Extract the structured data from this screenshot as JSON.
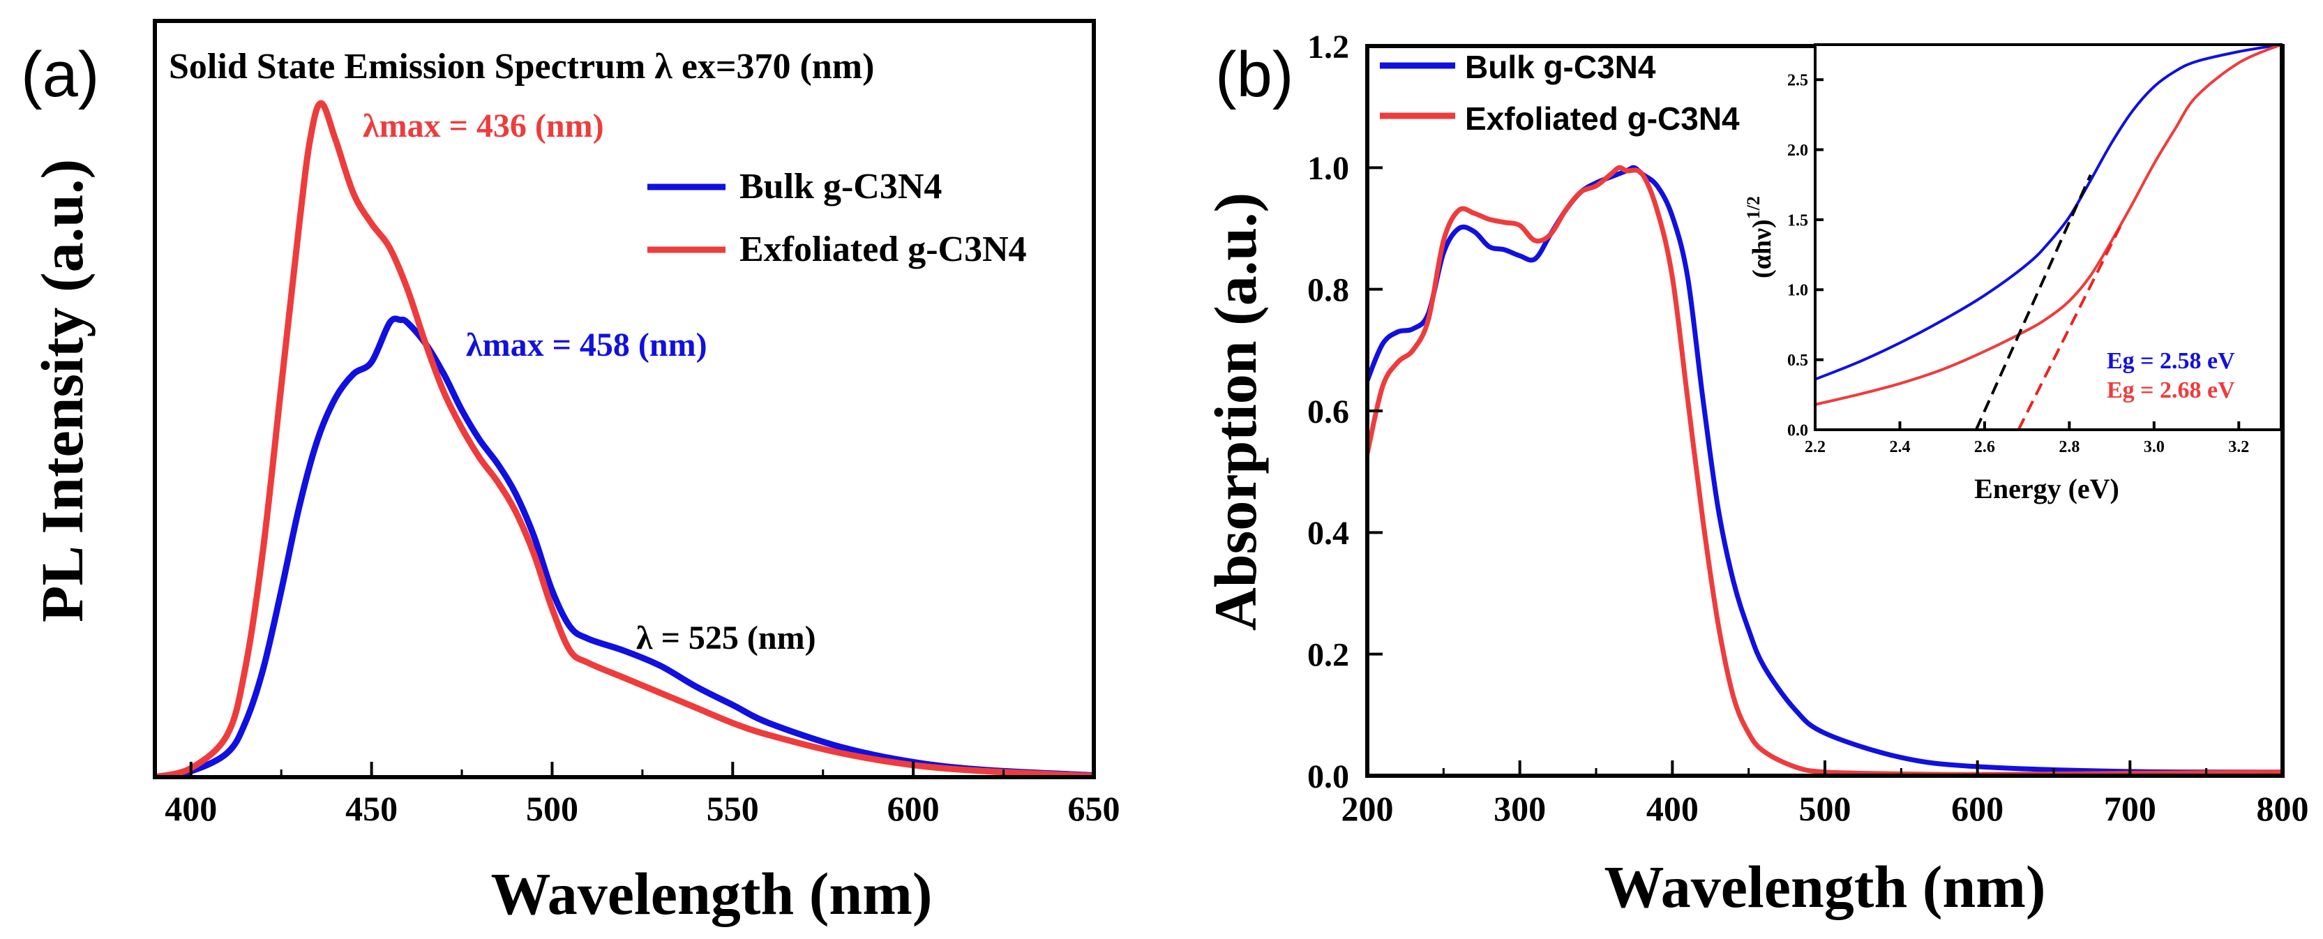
{
  "colors": {
    "bulk": "#1010e0",
    "exfoliated": "#ee3c3c",
    "axis": "#000000",
    "tangent_bulk": "#000000",
    "tangent_exf": "#ee2222"
  },
  "chart_data": [
    {
      "type": "line",
      "panel_label": "(a)",
      "title": "Solid State Emission Spectrum λ ex=370 (nm)",
      "xlabel": "Wavelength (nm)",
      "ylabel": "PL Intensity (a.u.)",
      "xlim": [
        390,
        650
      ],
      "ylim": [
        0,
        1.12
      ],
      "xticks": [
        "400",
        "450",
        "500",
        "550",
        "600",
        "650"
      ],
      "xtick_values": [
        400,
        450,
        500,
        550,
        600,
        650
      ],
      "legend": {
        "position": "upper-right",
        "entries": [
          "Bulk g-C3N4",
          "Exfoliated g-C3N4"
        ]
      },
      "annotations": [
        {
          "text": "λmax = 436 (nm)",
          "series": "Exfoliated g-C3N4"
        },
        {
          "text": "λmax = 458 (nm)",
          "series": "Bulk g-C3N4"
        },
        {
          "text": "λ = 525 (nm)",
          "series": "both"
        }
      ],
      "series": [
        {
          "name": "Bulk g-C3N4",
          "color_key": "bulk",
          "x": [
            390,
            400,
            410,
            415,
            420,
            425,
            430,
            435,
            440,
            445,
            450,
            455,
            458,
            460,
            465,
            470,
            475,
            480,
            485,
            490,
            495,
            500,
            505,
            510,
            520,
            530,
            540,
            550,
            560,
            580,
            600,
            620,
            650
          ],
          "y": [
            0.0,
            0.01,
            0.04,
            0.09,
            0.18,
            0.31,
            0.45,
            0.56,
            0.63,
            0.67,
            0.69,
            0.755,
            0.76,
            0.755,
            0.72,
            0.67,
            0.61,
            0.56,
            0.52,
            0.47,
            0.4,
            0.31,
            0.25,
            0.23,
            0.21,
            0.185,
            0.15,
            0.12,
            0.09,
            0.05,
            0.025,
            0.012,
            0.003
          ]
        },
        {
          "name": "Exfoliated g-C3N4",
          "color_key": "exfoliated",
          "x": [
            390,
            400,
            410,
            415,
            420,
            425,
            430,
            433,
            436,
            440,
            445,
            450,
            455,
            460,
            465,
            470,
            475,
            480,
            485,
            490,
            495,
            500,
            505,
            510,
            520,
            530,
            540,
            550,
            560,
            580,
            600,
            620,
            650
          ],
          "y": [
            0.0,
            0.015,
            0.07,
            0.18,
            0.38,
            0.65,
            0.92,
            1.06,
            1.12,
            1.06,
            0.97,
            0.92,
            0.88,
            0.81,
            0.72,
            0.64,
            0.58,
            0.53,
            0.49,
            0.44,
            0.37,
            0.28,
            0.21,
            0.19,
            0.165,
            0.14,
            0.115,
            0.09,
            0.07,
            0.04,
            0.02,
            0.01,
            0.002
          ]
        }
      ]
    },
    {
      "type": "line",
      "panel_label": "(b)",
      "xlabel": "Wavelength (nm)",
      "ylabel": "Absorption (a.u.)",
      "xlim": [
        200,
        800
      ],
      "ylim": [
        0.0,
        1.2
      ],
      "xticks": [
        "200",
        "300",
        "400",
        "500",
        "600",
        "700",
        "800"
      ],
      "xtick_values": [
        200,
        300,
        400,
        500,
        600,
        700,
        800
      ],
      "yticks": [
        "0.0",
        "0.2",
        "0.4",
        "0.6",
        "0.8",
        "1.0",
        "1.2"
      ],
      "ytick_values": [
        0.0,
        0.2,
        0.4,
        0.6,
        0.8,
        1.0,
        1.2
      ],
      "legend": {
        "position": "top-left",
        "entries": [
          "Bulk g-C3N4",
          "Exfoliated g-C3N4"
        ]
      },
      "series": [
        {
          "name": "Bulk g-C3N4",
          "color_key": "bulk",
          "x": [
            200,
            210,
            220,
            230,
            240,
            250,
            260,
            270,
            280,
            290,
            300,
            310,
            320,
            330,
            340,
            350,
            360,
            370,
            375,
            380,
            390,
            400,
            410,
            420,
            430,
            440,
            450,
            460,
            480,
            500,
            550,
            600,
            700,
            800
          ],
          "y": [
            0.65,
            0.71,
            0.73,
            0.735,
            0.76,
            0.86,
            0.9,
            0.895,
            0.87,
            0.865,
            0.855,
            0.85,
            0.89,
            0.93,
            0.96,
            0.975,
            0.985,
            0.995,
            1.0,
            0.99,
            0.97,
            0.92,
            0.82,
            0.62,
            0.44,
            0.32,
            0.24,
            0.18,
            0.11,
            0.07,
            0.03,
            0.015,
            0.007,
            0.006
          ]
        },
        {
          "name": "Exfoliated g-C3N4",
          "color_key": "exfoliated",
          "x": [
            200,
            210,
            220,
            230,
            240,
            250,
            260,
            270,
            280,
            290,
            300,
            310,
            320,
            330,
            340,
            350,
            360,
            365,
            370,
            380,
            390,
            400,
            410,
            420,
            430,
            440,
            450,
            460,
            480,
            500,
            550,
            600,
            700,
            800
          ],
          "y": [
            0.53,
            0.64,
            0.68,
            0.7,
            0.75,
            0.88,
            0.93,
            0.925,
            0.915,
            0.91,
            0.905,
            0.88,
            0.89,
            0.93,
            0.96,
            0.97,
            0.99,
            1.0,
            0.995,
            0.99,
            0.93,
            0.82,
            0.62,
            0.42,
            0.25,
            0.13,
            0.07,
            0.04,
            0.015,
            0.006,
            0.003,
            0.002,
            0.004,
            0.006
          ]
        }
      ],
      "inset": {
        "type": "line",
        "xlabel": "Energy (eV)",
        "ylabel": "(αhν)1/2",
        "xlim": [
          2.2,
          3.3
        ],
        "ylim": [
          0.0,
          2.75
        ],
        "xticks": [
          "2.2",
          "2.4",
          "2.6",
          "2.8",
          "3.0",
          "3.2"
        ],
        "xtick_values": [
          2.2,
          2.4,
          2.6,
          2.8,
          3.0,
          3.2
        ],
        "yticks": [
          "0.0",
          "0.5",
          "1.0",
          "1.5",
          "2.0",
          "2.5"
        ],
        "ytick_values": [
          0.0,
          0.5,
          1.0,
          1.5,
          2.0,
          2.5
        ],
        "annotations": [
          {
            "text": "Eg = 2.58 eV",
            "color_key": "bulk",
            "value": 2.58
          },
          {
            "text": "Eg = 2.68 eV",
            "color_key": "exfoliated",
            "value": 2.68
          }
        ],
        "series": [
          {
            "name": "Bulk g-C3N4",
            "color_key": "bulk",
            "x": [
              2.2,
              2.3,
              2.4,
              2.5,
              2.6,
              2.7,
              2.75,
              2.8,
              2.85,
              2.9,
              2.95,
              3.0,
              3.05,
              3.1,
              3.2,
              3.3
            ],
            "y": [
              0.36,
              0.48,
              0.62,
              0.78,
              0.96,
              1.18,
              1.33,
              1.52,
              1.78,
              2.05,
              2.28,
              2.45,
              2.56,
              2.63,
              2.7,
              2.75
            ]
          },
          {
            "name": "Exfoliated g-C3N4",
            "color_key": "exfoliated",
            "x": [
              2.2,
              2.3,
              2.4,
              2.5,
              2.6,
              2.7,
              2.75,
              2.8,
              2.85,
              2.9,
              2.95,
              3.0,
              3.05,
              3.1,
              3.2,
              3.3
            ],
            "y": [
              0.18,
              0.25,
              0.33,
              0.43,
              0.56,
              0.71,
              0.8,
              0.92,
              1.1,
              1.35,
              1.62,
              1.9,
              2.15,
              2.38,
              2.62,
              2.75
            ]
          }
        ],
        "tangents": [
          {
            "color_key": "tangent_bulk",
            "x": [
              2.58,
              2.85
            ],
            "y": [
              0.0,
              1.82
            ]
          },
          {
            "color_key": "tangent_exf",
            "x": [
              2.68,
              2.92
            ],
            "y": [
              0.0,
              1.45
            ]
          }
        ]
      }
    }
  ]
}
